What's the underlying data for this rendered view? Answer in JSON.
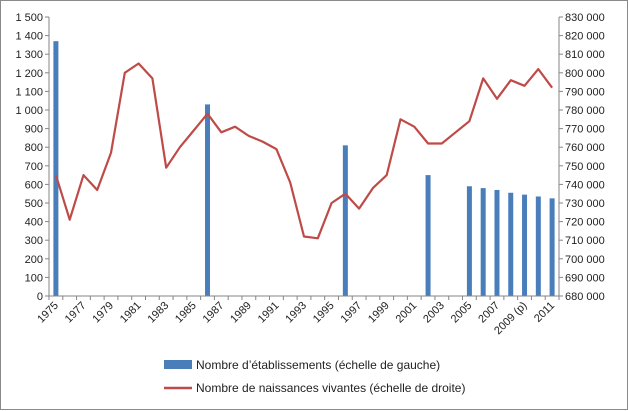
{
  "colors": {
    "bars": "#4a7ebb",
    "line": "#be4b48",
    "axis": "#868686"
  },
  "chart_data": {
    "type": "bar+line",
    "categories": [
      "1975",
      "1976",
      "1977",
      "1978",
      "1979",
      "1980",
      "1981",
      "1982",
      "1983",
      "1984",
      "1985",
      "1986",
      "1987",
      "1988",
      "1989",
      "1990",
      "1991",
      "1992",
      "1993",
      "1994",
      "1995",
      "1996",
      "1997",
      "1998",
      "1999",
      "2000",
      "2001",
      "2002",
      "2003",
      "2004",
      "2005",
      "2006",
      "2007",
      "2008",
      "2009 (p)",
      "2010",
      "2011"
    ],
    "x_tick_labels": [
      "1975",
      "1977",
      "1979",
      "1981",
      "1983",
      "1985",
      "1987",
      "1989",
      "1991",
      "1993",
      "1995",
      "1997",
      "1999",
      "2001",
      "2003",
      "2005",
      "2007",
      "2009 (p)",
      "2011"
    ],
    "bars": {
      "name": "Nombre d’établissements (échelle de gauche)",
      "axis": "left",
      "values": [
        1370,
        null,
        null,
        null,
        null,
        null,
        null,
        null,
        null,
        null,
        null,
        1030,
        null,
        null,
        null,
        null,
        null,
        null,
        null,
        null,
        null,
        810,
        null,
        null,
        null,
        null,
        null,
        650,
        null,
        null,
        590,
        580,
        570,
        555,
        545,
        535,
        525
      ]
    },
    "line": {
      "name": "Nombre de naissances vivantes (échelle de droite)",
      "axis": "right",
      "values": [
        745000,
        721000,
        745000,
        737000,
        757000,
        800000,
        805000,
        797000,
        749000,
        760000,
        769000,
        778000,
        768000,
        771000,
        766000,
        763000,
        759000,
        741000,
        712000,
        711000,
        730000,
        735000,
        727000,
        738000,
        745000,
        775000,
        771000,
        762000,
        762000,
        768000,
        774000,
        797000,
        786000,
        796000,
        793000,
        802000,
        792000
      ]
    },
    "y_left": {
      "min": 0,
      "max": 1500,
      "step": 100,
      "tick_labels": [
        "0",
        "100",
        "200",
        "300",
        "400",
        "500",
        "600",
        "700",
        "800",
        "900",
        "1 000",
        "1 100",
        "1 200",
        "1 300",
        "1 400",
        "1 500"
      ]
    },
    "y_right": {
      "min": 680000,
      "max": 830000,
      "step": 10000,
      "tick_labels": [
        "680 000",
        "690 000",
        "700 000",
        "710 000",
        "720 000",
        "730 000",
        "740 000",
        "750 000",
        "760 000",
        "770 000",
        "780 000",
        "790 000",
        "800 000",
        "810 000",
        "820 000",
        "830 000"
      ]
    },
    "grid": false,
    "legend_position": "bottom"
  }
}
